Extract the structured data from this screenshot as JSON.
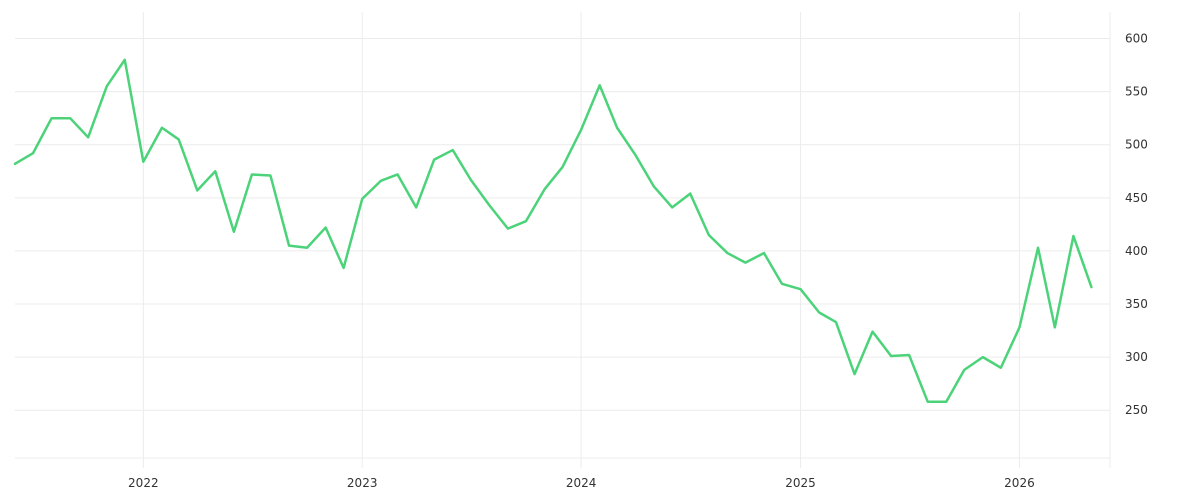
{
  "chart_data": {
    "type": "line",
    "title": "",
    "xlabel": "",
    "ylabel": "",
    "x_tick_labels": [
      "2022",
      "2023",
      "2024",
      "2025",
      "2026"
    ],
    "y_tick_labels": [
      "250",
      "300",
      "350",
      "400",
      "450",
      "500",
      "550",
      "600"
    ],
    "ylim": [
      205,
      625
    ],
    "xlim": [
      "2021-06-01",
      "2026-06-01"
    ],
    "grid": true,
    "line_color": "#4cd37a",
    "grid_color": "#ececec",
    "series": [
      {
        "x": [
          "2021-06",
          "2021-07",
          "2021-08",
          "2021-09",
          "2021-10",
          "2021-11",
          "2021-12",
          "2022-01",
          "2022-02",
          "2022-03",
          "2022-04",
          "2022-05",
          "2022-06",
          "2022-07",
          "2022-08",
          "2022-09",
          "2022-10",
          "2022-11",
          "2022-12",
          "2023-01",
          "2023-02",
          "2023-03",
          "2023-04",
          "2023-05",
          "2023-06",
          "2023-07",
          "2023-08",
          "2023-09",
          "2023-10",
          "2023-11",
          "2023-12",
          "2024-01",
          "2024-02",
          "2024-03",
          "2024-04",
          "2024-05",
          "2024-06",
          "2024-07",
          "2024-08",
          "2024-09",
          "2024-10",
          "2024-11",
          "2024-12",
          "2025-01",
          "2025-02",
          "2025-03",
          "2025-04",
          "2025-05",
          "2025-06",
          "2025-07",
          "2025-08",
          "2025-09",
          "2025-10",
          "2025-11",
          "2025-12",
          "2026-01",
          "2026-02",
          "2026-03",
          "2026-04",
          "2026-05"
        ],
        "values": [
          482,
          492,
          525,
          525,
          507,
          555,
          580,
          484,
          516,
          505,
          457,
          475,
          418,
          472,
          471,
          405,
          403,
          422,
          384,
          449,
          466,
          472,
          441,
          486,
          495,
          467,
          443,
          421,
          428,
          458,
          479,
          514,
          556,
          516,
          490,
          461,
          441,
          454,
          415,
          398,
          389,
          398,
          369,
          364,
          342,
          333,
          284,
          324,
          301,
          302,
          258,
          258,
          288,
          300,
          290,
          328,
          403,
          328,
          414,
          366
        ]
      }
    ]
  }
}
